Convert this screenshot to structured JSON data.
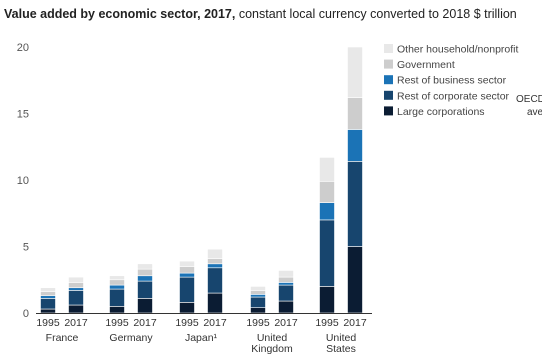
{
  "title": {
    "bold": "Value added by economic sector, 2017,",
    "rest": " constant local currency converted to 2018 $ trillion"
  },
  "colors": {
    "Large corporations": "#0b1c33",
    "Rest of corporate sector": "#17456e",
    "Rest of business sector": "#1b73b6",
    "Government": "#cdcdcd",
    "Other household/nonprofit": "#e8e8e8",
    "axis": "#333333",
    "grid": "#e3e3e3"
  },
  "cut_label": {
    "line1": "OECD",
    "line2": "ave"
  },
  "chart_data": {
    "type": "bar",
    "stacked": true,
    "title": "Value added by economic sector, 2017, constant local currency converted to 2018 $ trillion",
    "ylim": [
      0,
      20
    ],
    "yticks": [
      0,
      5,
      10,
      15,
      20
    ],
    "grid": false,
    "legend_position": "top-right",
    "groups": [
      {
        "name": "France",
        "name_lines": [
          "France"
        ],
        "years": [
          "1995",
          "2017"
        ]
      },
      {
        "name": "Germany",
        "name_lines": [
          "Germany"
        ],
        "years": [
          "1995",
          "2017"
        ]
      },
      {
        "name": "Japan¹",
        "name_lines": [
          "Japan¹"
        ],
        "years": [
          "1995",
          "2017"
        ]
      },
      {
        "name": "United Kingdom",
        "name_lines": [
          "United",
          "Kingdom"
        ],
        "years": [
          "1995",
          "2017"
        ]
      },
      {
        "name": "United States",
        "name_lines": [
          "United",
          "States"
        ],
        "years": [
          "1995",
          "2017"
        ]
      }
    ],
    "series": [
      {
        "name": "Large corporations",
        "values": [
          [
            0.3,
            0.6
          ],
          [
            0.5,
            1.1
          ],
          [
            0.8,
            1.5
          ],
          [
            0.4,
            0.9
          ],
          [
            2.0,
            5.0
          ]
        ]
      },
      {
        "name": "Rest of corporate sector",
        "values": [
          [
            0.8,
            1.1
          ],
          [
            1.3,
            1.3
          ],
          [
            1.9,
            1.9
          ],
          [
            0.8,
            1.2
          ],
          [
            5.0,
            6.4
          ]
        ]
      },
      {
        "name": "Rest of business sector",
        "values": [
          [
            0.2,
            0.2
          ],
          [
            0.3,
            0.4
          ],
          [
            0.3,
            0.3
          ],
          [
            0.2,
            0.2
          ],
          [
            1.3,
            2.4
          ]
        ]
      },
      {
        "name": "Government",
        "values": [
          [
            0.3,
            0.4
          ],
          [
            0.4,
            0.5
          ],
          [
            0.5,
            0.4
          ],
          [
            0.3,
            0.4
          ],
          [
            1.6,
            2.4
          ]
        ]
      },
      {
        "name": "Other household/nonprofit",
        "values": [
          [
            0.3,
            0.4
          ],
          [
            0.3,
            0.4
          ],
          [
            0.4,
            0.7
          ],
          [
            0.3,
            0.5
          ],
          [
            1.8,
            3.8
          ]
        ]
      }
    ]
  }
}
